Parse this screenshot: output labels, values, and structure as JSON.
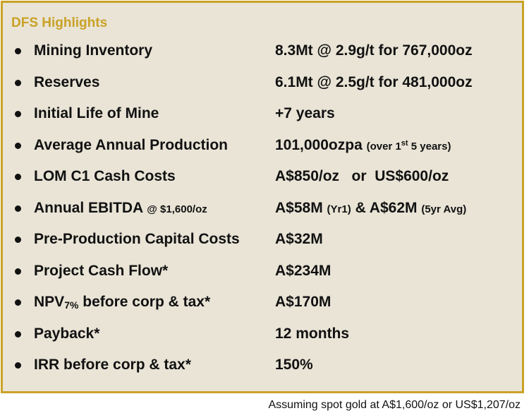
{
  "title": "DFS Highlights",
  "rows": [
    {
      "label": "Mining Inventory",
      "value": "8.3Mt @ 2.9g/t for 767,000oz"
    },
    {
      "label": "Reserves",
      "value": "6.1Mt @ 2.5g/t for 481,000oz"
    },
    {
      "label": "Initial Life of Mine",
      "value": "+7 years"
    },
    {
      "label": "Average Annual Production",
      "value_main": "101,000ozpa",
      "value_note_pre": "(over 1",
      "value_note_sup1": "st",
      "value_note_mid": " 5 years)"
    },
    {
      "label": "LOM C1 Cash Costs",
      "value": "A$850/oz   or  US$600/oz"
    },
    {
      "label": "Annual EBITDA",
      "label_small": "@ $1,600/oz",
      "value_a": "A$58M",
      "value_a_note": "(Yr1)",
      "value_b": "& A$62M",
      "value_b_note": "(5yr Avg)"
    },
    {
      "label": "Pre-Production Capital Costs",
      "value": "A$32M"
    },
    {
      "label": "Project Cash Flow*",
      "value": "A$234M"
    },
    {
      "label_pre": "NPV",
      "label_sub": "7%",
      "label_post": " before corp & tax*",
      "value": "A$170M"
    },
    {
      "label": "Payback*",
      "value": "12 months"
    },
    {
      "label": "IRR before corp & tax*",
      "value": "150%"
    }
  ],
  "footnote": "Assuming spot gold at A$1,600/oz or US$1,207/oz"
}
